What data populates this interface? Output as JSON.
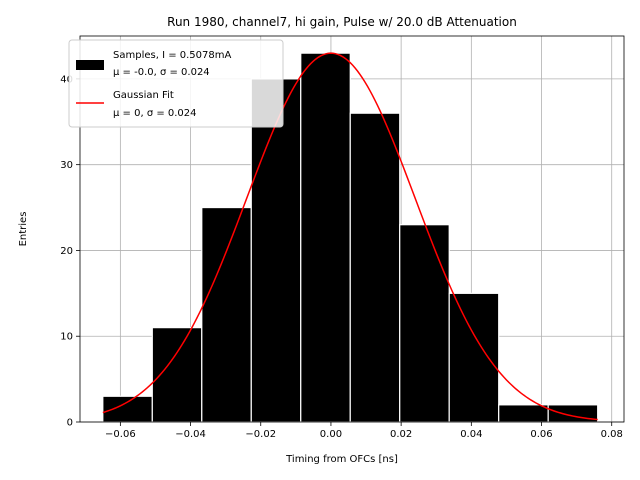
{
  "chart_data": {
    "type": "bar",
    "title": "Run 1980, channel7, hi gain, Pulse w/ 20.0 dB Attenuation",
    "xlabel": "Timing from OFCs [ns]",
    "ylabel": "Entries",
    "xlim": [
      -0.0715,
      0.0835
    ],
    "ylim": [
      0,
      45
    ],
    "xticks": [
      -0.06,
      -0.04,
      -0.02,
      0.0,
      0.02,
      0.04,
      0.06,
      0.08
    ],
    "xtick_labels": [
      "−0.06",
      "−0.04",
      "−0.02",
      "0.00",
      "0.02",
      "0.04",
      "0.06",
      "0.08"
    ],
    "yticks": [
      0,
      10,
      20,
      30,
      40
    ],
    "ytick_labels": [
      "0",
      "10",
      "20",
      "30",
      "40"
    ],
    "grid": true,
    "legend_position": "top-left",
    "bars": [
      {
        "left": -0.065,
        "right": -0.0509,
        "value": 3
      },
      {
        "left": -0.0509,
        "right": -0.0368,
        "value": 11
      },
      {
        "left": -0.0368,
        "right": -0.0227,
        "value": 25
      },
      {
        "left": -0.0227,
        "right": -0.0086,
        "value": 40
      },
      {
        "left": -0.0086,
        "right": 0.0055,
        "value": 43
      },
      {
        "left": 0.0055,
        "right": 0.0196,
        "value": 36
      },
      {
        "left": 0.0196,
        "right": 0.0337,
        "value": 23
      },
      {
        "left": 0.0337,
        "right": 0.0478,
        "value": 15
      },
      {
        "left": 0.0478,
        "right": 0.0619,
        "value": 2
      },
      {
        "left": 0.0619,
        "right": 0.076,
        "value": 2
      }
    ],
    "series": [
      {
        "name": "Samples, I = 0.5078mA",
        "stats": "μ = -0.0, σ = 0.024",
        "kind": "histogram",
        "color": "#000000"
      },
      {
        "name": "Gaussian Fit",
        "stats": "μ = 0, σ = 0.024",
        "kind": "line",
        "color": "#ff0000",
        "mu": 0.0,
        "sigma": 0.024,
        "amplitude": 43,
        "x_range": [
          -0.065,
          0.076
        ]
      }
    ],
    "colors": {
      "bar_fill": "#000000",
      "bar_edge": "#ffffff",
      "fit_line": "#ff0000",
      "grid": "#b0b0b0"
    }
  }
}
